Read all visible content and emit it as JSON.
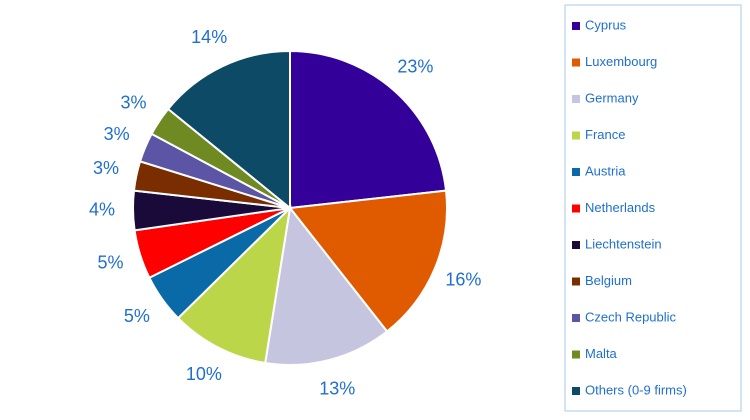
{
  "chart_data": {
    "type": "pie",
    "categories": [
      "Cyprus",
      "Luxembourg",
      "Germany",
      "France",
      "Austria",
      "Netherlands",
      "Liechtenstein",
      "Belgium",
      "Czech Republic",
      "Malta",
      "Others (0-9 firms)"
    ],
    "values": [
      23,
      16,
      13,
      10,
      5,
      5,
      4,
      3,
      3,
      3,
      14
    ],
    "value_labels": [
      "23%",
      "16%",
      "13%",
      "10%",
      "5%",
      "5%",
      "4%",
      "3%",
      "3%",
      "3%",
      "14%"
    ],
    "colors": [
      "#330099",
      "#e05a00",
      "#c5c5e0",
      "#bcd64a",
      "#0a6aa8",
      "#ff0000",
      "#1a0a3a",
      "#7a2e00",
      "#5c54a4",
      "#6f8a22",
      "#0d4a66"
    ]
  }
}
